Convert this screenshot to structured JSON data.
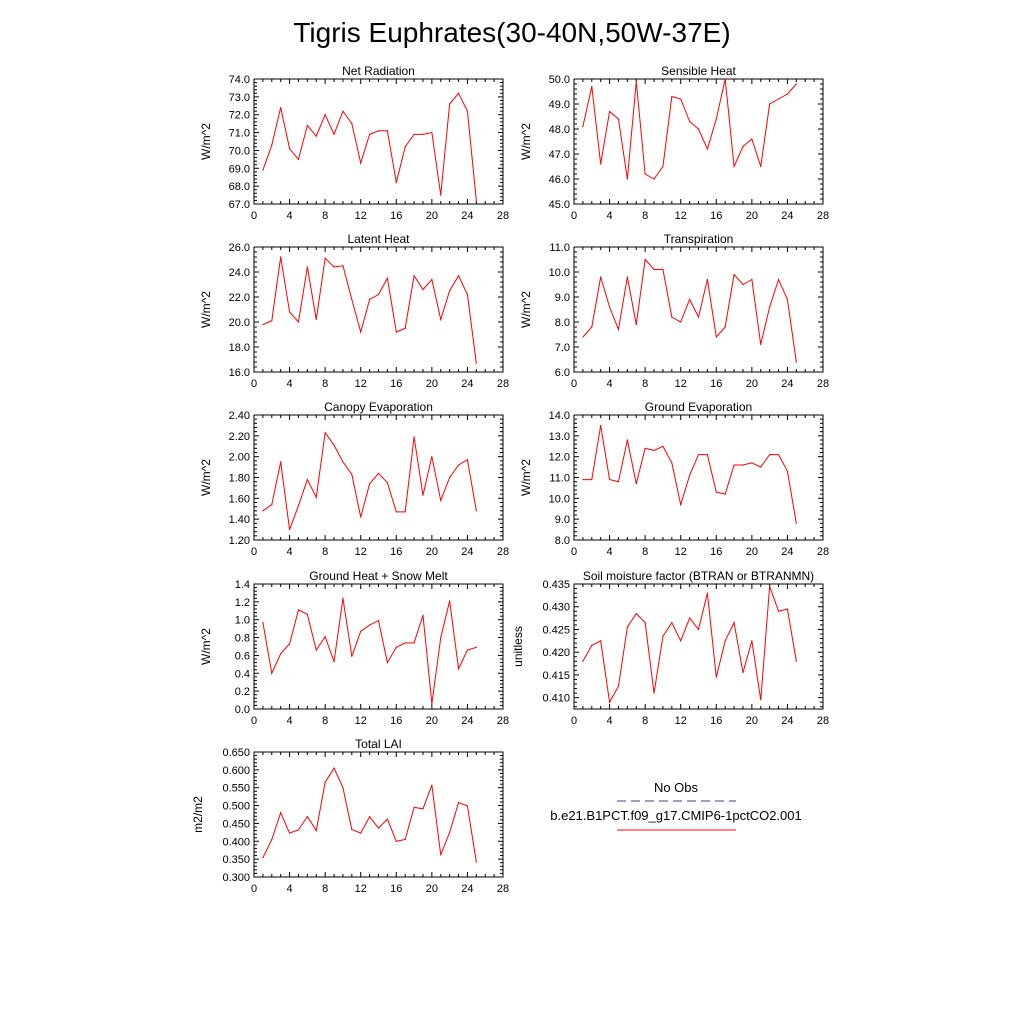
{
  "figure_title": "Tigris Euphrates(30-40N,50W-37E)",
  "colors": {
    "model": "#ff0000",
    "obs": "#3c3c96",
    "axis": "#000000"
  },
  "legend": {
    "obs_label": "No Obs",
    "model_label": "b.e21.B1PCT.f09_g17.CMIP6-1pctCO2.001"
  },
  "chart_data": [
    {
      "type": "line",
      "title": "Net Radiation",
      "ylabel": "W/m^2",
      "xlim": [
        0,
        28
      ],
      "xticks": [
        0,
        4,
        8,
        12,
        16,
        20,
        24,
        28
      ],
      "ylim": [
        67.0,
        74.0
      ],
      "yticks": [
        67.0,
        68.0,
        69.0,
        70.0,
        71.0,
        72.0,
        73.0,
        74.0
      ],
      "ydec": 1,
      "x": [
        1,
        2,
        3,
        4,
        5,
        6,
        7,
        8,
        9,
        10,
        11,
        12,
        13,
        14,
        15,
        16,
        17,
        18,
        19,
        20,
        21,
        22,
        23,
        24,
        25
      ],
      "series": [
        {
          "values": [
            68.9,
            70.3,
            72.4,
            70.1,
            69.5,
            71.4,
            70.8,
            72.0,
            70.9,
            72.2,
            71.5,
            69.3,
            70.9,
            71.1,
            71.1,
            68.2,
            70.2,
            70.9,
            70.9,
            71.0,
            67.5,
            72.6,
            73.2,
            72.2,
            67.2
          ]
        }
      ]
    },
    {
      "type": "line",
      "title": "Sensible Heat",
      "ylabel": "W/m^2",
      "xlim": [
        0,
        28
      ],
      "xticks": [
        0,
        4,
        8,
        12,
        16,
        20,
        24,
        28
      ],
      "ylim": [
        45.0,
        50.0
      ],
      "yticks": [
        45.0,
        46.0,
        47.0,
        48.0,
        49.0,
        50.0
      ],
      "ydec": 1,
      "x": [
        1,
        2,
        3,
        4,
        5,
        6,
        7,
        8,
        9,
        10,
        11,
        12,
        13,
        14,
        15,
        16,
        17,
        18,
        19,
        20,
        21,
        22,
        23,
        24,
        25
      ],
      "series": [
        {
          "values": [
            48.1,
            49.7,
            46.6,
            48.7,
            48.4,
            46.0,
            49.9,
            46.2,
            46.0,
            46.5,
            49.3,
            49.2,
            48.3,
            48.0,
            47.2,
            48.4,
            50.0,
            46.5,
            47.3,
            47.6,
            46.5,
            49.0,
            49.2,
            49.4,
            49.8
          ]
        }
      ]
    },
    {
      "type": "line",
      "title": "Latent Heat",
      "ylabel": "W/m^2",
      "xlim": [
        0,
        28
      ],
      "xticks": [
        0,
        4,
        8,
        12,
        16,
        20,
        24,
        28
      ],
      "ylim": [
        16.0,
        26.0
      ],
      "yticks": [
        16.0,
        18.0,
        20.0,
        22.0,
        24.0,
        26.0
      ],
      "ydec": 1,
      "x": [
        1,
        2,
        3,
        4,
        5,
        6,
        7,
        8,
        9,
        10,
        11,
        12,
        13,
        14,
        15,
        16,
        17,
        18,
        19,
        20,
        21,
        22,
        23,
        24,
        25
      ],
      "series": [
        {
          "values": [
            19.8,
            20.1,
            25.2,
            20.8,
            20.0,
            24.4,
            20.2,
            25.1,
            24.4,
            24.5,
            21.8,
            19.2,
            21.8,
            22.2,
            23.5,
            19.2,
            19.5,
            23.7,
            22.6,
            23.4,
            20.2,
            22.5,
            23.7,
            22.2,
            16.7
          ]
        }
      ]
    },
    {
      "type": "line",
      "title": "Transpiration",
      "ylabel": "W/m^2",
      "xlim": [
        0,
        28
      ],
      "xticks": [
        0,
        4,
        8,
        12,
        16,
        20,
        24,
        28
      ],
      "ylim": [
        6.0,
        11.0
      ],
      "yticks": [
        6.0,
        7.0,
        8.0,
        9.0,
        10.0,
        11.0
      ],
      "ydec": 1,
      "x": [
        1,
        2,
        3,
        4,
        5,
        6,
        7,
        8,
        9,
        10,
        11,
        12,
        13,
        14,
        15,
        16,
        17,
        18,
        19,
        20,
        21,
        22,
        23,
        24,
        25
      ],
      "series": [
        {
          "values": [
            7.4,
            7.8,
            9.8,
            8.6,
            7.7,
            9.8,
            7.9,
            10.5,
            10.1,
            10.1,
            8.2,
            8.0,
            8.9,
            8.2,
            9.7,
            7.4,
            7.8,
            9.9,
            9.5,
            9.7,
            7.1,
            8.6,
            9.7,
            8.9,
            6.4
          ]
        }
      ]
    },
    {
      "type": "line",
      "title": "Canopy Evaporation",
      "ylabel": "W/m^2",
      "xlim": [
        0,
        28
      ],
      "xticks": [
        0,
        4,
        8,
        12,
        16,
        20,
        24,
        28
      ],
      "ylim": [
        1.2,
        2.4
      ],
      "yticks": [
        1.2,
        1.4,
        1.6,
        1.8,
        2.0,
        2.2,
        2.4
      ],
      "ydec": 2,
      "x": [
        1,
        2,
        3,
        4,
        5,
        6,
        7,
        8,
        9,
        10,
        11,
        12,
        13,
        14,
        15,
        16,
        17,
        18,
        19,
        20,
        21,
        22,
        23,
        24,
        25
      ],
      "series": [
        {
          "values": [
            1.48,
            1.54,
            1.95,
            1.3,
            1.53,
            1.78,
            1.61,
            2.23,
            2.11,
            1.95,
            1.83,
            1.42,
            1.74,
            1.84,
            1.75,
            1.47,
            1.47,
            2.19,
            1.63,
            2.0,
            1.58,
            1.8,
            1.92,
            1.97,
            1.48
          ]
        }
      ]
    },
    {
      "type": "line",
      "title": "Ground Evaporation",
      "ylabel": "W/m^2",
      "xlim": [
        0,
        28
      ],
      "xticks": [
        0,
        4,
        8,
        12,
        16,
        20,
        24,
        28
      ],
      "ylim": [
        8.0,
        14.0
      ],
      "yticks": [
        8.0,
        9.0,
        10.0,
        11.0,
        12.0,
        13.0,
        14.0
      ],
      "ydec": 1,
      "x": [
        1,
        2,
        3,
        4,
        5,
        6,
        7,
        8,
        9,
        10,
        11,
        12,
        13,
        14,
        15,
        16,
        17,
        18,
        19,
        20,
        21,
        22,
        23,
        24,
        25
      ],
      "series": [
        {
          "values": [
            10.9,
            10.9,
            13.5,
            10.9,
            10.8,
            12.8,
            10.7,
            12.4,
            12.3,
            12.5,
            11.7,
            9.7,
            11.1,
            12.1,
            12.1,
            10.3,
            10.2,
            11.6,
            11.6,
            11.7,
            11.5,
            12.1,
            12.1,
            11.3,
            8.8
          ]
        }
      ]
    },
    {
      "type": "line",
      "title": "Ground Heat + Snow Melt",
      "ylabel": "W/m^2",
      "xlim": [
        0,
        28
      ],
      "xticks": [
        0,
        4,
        8,
        12,
        16,
        20,
        24,
        28
      ],
      "ylim": [
        0.0,
        1.4
      ],
      "yticks": [
        0.0,
        0.2,
        0.4,
        0.6,
        0.8,
        1.0,
        1.2,
        1.4
      ],
      "ydec": 1,
      "x": [
        1,
        2,
        3,
        4,
        5,
        6,
        7,
        8,
        9,
        10,
        11,
        12,
        13,
        14,
        15,
        16,
        17,
        18,
        19,
        20,
        21,
        22,
        23,
        24,
        25
      ],
      "series": [
        {
          "values": [
            0.97,
            0.4,
            0.62,
            0.73,
            1.11,
            1.06,
            0.66,
            0.81,
            0.53,
            1.24,
            0.59,
            0.87,
            0.94,
            0.99,
            0.52,
            0.69,
            0.74,
            0.74,
            1.05,
            0.06,
            0.8,
            1.21,
            0.45,
            0.66,
            0.69
          ]
        }
      ]
    },
    {
      "type": "line",
      "title": "Soil moisture factor (BTRAN or BTRANMN)",
      "ylabel": "unitless",
      "xlim": [
        0,
        28
      ],
      "xticks": [
        0,
        4,
        8,
        12,
        16,
        20,
        24,
        28
      ],
      "ylim": [
        0.4075,
        0.435
      ],
      "yticks": [
        0.41,
        0.415,
        0.42,
        0.425,
        0.43,
        0.435
      ],
      "ydec": 3,
      "x": [
        1,
        2,
        3,
        4,
        5,
        6,
        7,
        8,
        9,
        10,
        11,
        12,
        13,
        14,
        15,
        16,
        17,
        18,
        19,
        20,
        21,
        22,
        23,
        24,
        25
      ],
      "series": [
        {
          "values": [
            0.418,
            0.4215,
            0.4225,
            0.409,
            0.4125,
            0.4255,
            0.4285,
            0.4265,
            0.411,
            0.4235,
            0.4265,
            0.4225,
            0.4275,
            0.425,
            0.433,
            0.4145,
            0.4225,
            0.4265,
            0.4155,
            0.4225,
            0.4095,
            0.4345,
            0.429,
            0.4295,
            0.418
          ]
        }
      ]
    },
    {
      "type": "line",
      "title": "Total LAI",
      "ylabel": "m2/m2",
      "xlim": [
        0,
        28
      ],
      "xticks": [
        0,
        4,
        8,
        12,
        16,
        20,
        24,
        28
      ],
      "ylim": [
        0.3,
        0.65
      ],
      "yticks": [
        0.3,
        0.35,
        0.4,
        0.45,
        0.5,
        0.55,
        0.6,
        0.65
      ],
      "ydec": 3,
      "x": [
        1,
        2,
        3,
        4,
        5,
        6,
        7,
        8,
        9,
        10,
        11,
        12,
        13,
        14,
        15,
        16,
        17,
        18,
        19,
        20,
        21,
        22,
        23,
        24,
        25
      ],
      "series": [
        {
          "values": [
            0.354,
            0.405,
            0.48,
            0.423,
            0.432,
            0.469,
            0.43,
            0.565,
            0.605,
            0.55,
            0.433,
            0.423,
            0.469,
            0.437,
            0.462,
            0.4,
            0.405,
            0.495,
            0.491,
            0.557,
            0.362,
            0.425,
            0.508,
            0.499,
            0.342
          ]
        }
      ]
    }
  ]
}
